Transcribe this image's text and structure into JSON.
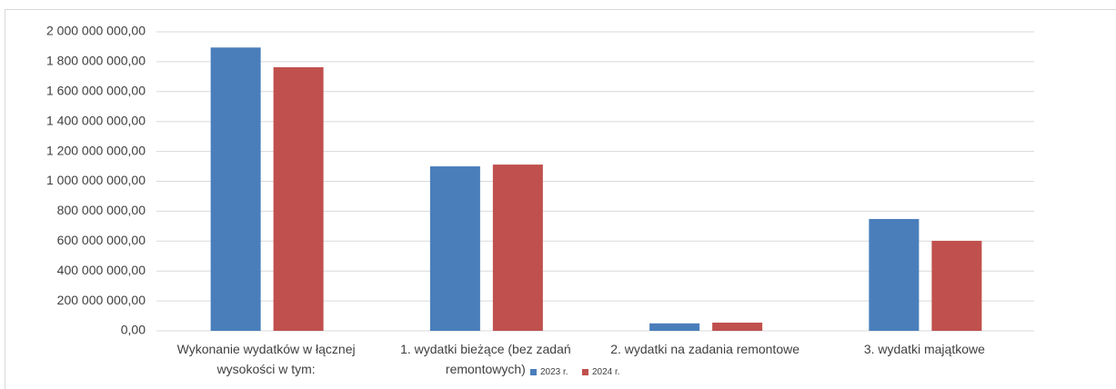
{
  "chart_data": {
    "type": "bar",
    "categories": [
      "Wykonanie wydatków w łącznej wysokości w tym:",
      "1. wydatki bieżące (bez zadań remontowych)",
      "2. wydatki na zadania remontowe",
      "3. wydatki majątkowe"
    ],
    "series": [
      {
        "name": "2023 r.",
        "color": "#4a7ebb",
        "values": [
          1895000000,
          1100000000,
          50000000,
          748000000
        ]
      },
      {
        "name": "2024 r.",
        "color": "#c0504d",
        "values": [
          1763000000,
          1112000000,
          55000000,
          602000000
        ]
      }
    ],
    "ylim": [
      0,
      2000000000
    ],
    "yticks": [
      {
        "value": 0,
        "label": "0,00"
      },
      {
        "value": 200000000,
        "label": "200 000 000,00"
      },
      {
        "value": 400000000,
        "label": "400 000 000,00"
      },
      {
        "value": 600000000,
        "label": "600 000 000,00"
      },
      {
        "value": 800000000,
        "label": "800 000 000,00"
      },
      {
        "value": 1000000000,
        "label": "1 000 000 000,00"
      },
      {
        "value": 1200000000,
        "label": "1 200 000 000,00"
      },
      {
        "value": 1400000000,
        "label": "1 400 000 000,00"
      },
      {
        "value": 1600000000,
        "label": "1 600 000 000,00"
      },
      {
        "value": 1800000000,
        "label": "1 800 000 000,00"
      },
      {
        "value": 2000000000,
        "label": "2 000 000 000,00"
      }
    ],
    "grid": true,
    "legend": "bottom"
  }
}
